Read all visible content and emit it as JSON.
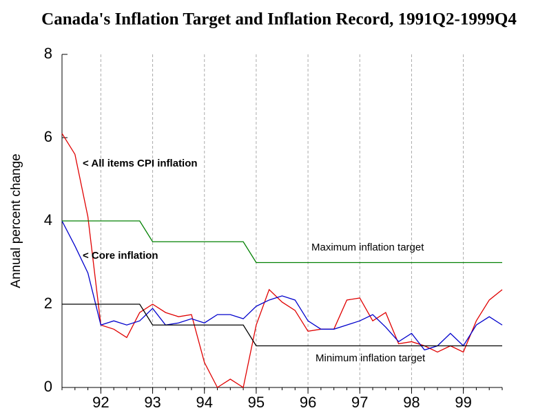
{
  "chart_data": {
    "type": "line",
    "title": "Canada's Inflation Target and Inflation Record, 1991Q2-1999Q4",
    "y_label": "Annual percent change",
    "x": [
      1991.25,
      1991.5,
      1991.75,
      1992,
      1992.25,
      1992.5,
      1992.75,
      1993,
      1993.25,
      1993.5,
      1993.75,
      1994,
      1994.25,
      1994.5,
      1994.75,
      1995,
      1995.25,
      1995.5,
      1995.75,
      1996,
      1996.25,
      1996.5,
      1996.75,
      1997,
      1997.25,
      1997.5,
      1997.75,
      1998,
      1998.25,
      1998.5,
      1998.75,
      1999,
      1999.25,
      1999.5,
      1999.75
    ],
    "series": [
      {
        "name": "< All items CPI inflation",
        "color": "#e00000",
        "values": [
          6.1,
          5.6,
          4.1,
          1.5,
          1.4,
          1.2,
          1.8,
          2.0,
          1.8,
          1.7,
          1.75,
          0.6,
          0.0,
          0.2,
          0.0,
          1.5,
          2.35,
          2.05,
          1.85,
          1.35,
          1.4,
          1.4,
          2.1,
          2.15,
          1.6,
          1.8,
          1.05,
          1.1,
          1.0,
          0.85,
          1.0,
          0.85,
          1.6,
          2.1,
          2.35
        ]
      },
      {
        "name": "< Core inflation",
        "color": "#0000cc",
        "values": [
          4.0,
          3.4,
          2.75,
          1.5,
          1.6,
          1.5,
          1.6,
          1.9,
          1.5,
          1.55,
          1.65,
          1.55,
          1.75,
          1.75,
          1.65,
          1.95,
          2.1,
          2.2,
          2.1,
          1.6,
          1.4,
          1.4,
          1.5,
          1.6,
          1.75,
          1.45,
          1.1,
          1.3,
          0.9,
          1.0,
          1.3,
          1.0,
          1.5,
          1.7,
          1.5
        ]
      },
      {
        "name": "Maximum inflation target",
        "color": "#008000",
        "values": [
          4,
          4,
          4,
          4,
          4,
          4,
          4,
          3.5,
          3.5,
          3.5,
          3.5,
          3.5,
          3.5,
          3.5,
          3.5,
          3,
          3,
          3,
          3,
          3,
          3,
          3,
          3,
          3,
          3,
          3,
          3,
          3,
          3,
          3,
          3,
          3,
          3,
          3,
          3
        ]
      },
      {
        "name": "Minimum inflation target",
        "color": "#000000",
        "values": [
          2,
          2,
          2,
          2,
          2,
          2,
          2,
          1.5,
          1.5,
          1.5,
          1.5,
          1.5,
          1.5,
          1.5,
          1.5,
          1,
          1,
          1,
          1,
          1,
          1,
          1,
          1,
          1,
          1,
          1,
          1,
          1,
          1,
          1,
          1,
          1,
          1,
          1,
          1
        ]
      }
    ],
    "xlim": [
      1991.25,
      1999.75
    ],
    "xticks": [
      {
        "value": 1992,
        "label": "92"
      },
      {
        "value": 1993,
        "label": "93"
      },
      {
        "value": 1994,
        "label": "94"
      },
      {
        "value": 1995,
        "label": "95"
      },
      {
        "value": 1996,
        "label": "96"
      },
      {
        "value": 1997,
        "label": "97"
      },
      {
        "value": 1998,
        "label": "98"
      },
      {
        "value": 1999,
        "label": "99"
      }
    ],
    "ylim": [
      0,
      8
    ],
    "yticks": [
      0,
      2,
      4,
      6,
      8
    ],
    "grid": true
  }
}
